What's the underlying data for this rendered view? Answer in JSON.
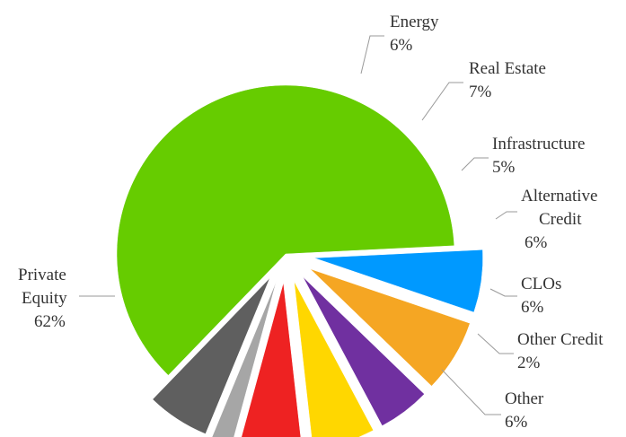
{
  "chart_data": {
    "type": "pie",
    "title": "",
    "slices": [
      {
        "label": "Private Equity",
        "value": 62,
        "display": "62%",
        "color": "#66cc00"
      },
      {
        "label": "Energy",
        "value": 6,
        "display": "6%",
        "color": "#0099ff"
      },
      {
        "label": "Real Estate",
        "value": 7,
        "display": "7%",
        "color": "#f5a623"
      },
      {
        "label": "Infrastructure",
        "value": 5,
        "display": "5%",
        "color": "#7030a0"
      },
      {
        "label": "Alternative Credit",
        "value": 6,
        "display": "6%",
        "color": "#ffd700"
      },
      {
        "label": "CLOs",
        "value": 6,
        "display": "6%",
        "color": "#ee2222"
      },
      {
        "label": "Other Credit",
        "value": 2,
        "display": "2%",
        "color": "#a6a6a6"
      },
      {
        "label": "Other",
        "value": 6,
        "display": "6%",
        "color": "#5f5f5f"
      }
    ],
    "label_lines": [
      [
        "Private",
        "Equity"
      ],
      [
        "Energy"
      ],
      [
        "Real Estate"
      ],
      [
        "Infrastructure"
      ],
      [
        "Alternative",
        "Credit"
      ],
      [
        "CLOs"
      ],
      [
        "Other Credit"
      ],
      [
        "Other"
      ]
    ],
    "exploded_slices": [
      "Energy",
      "Real Estate",
      "Infrastructure",
      "Alternative Credit",
      "CLOs",
      "Other Credit",
      "Other"
    ],
    "legend": "none",
    "data_labels": "outside with leader lines"
  }
}
